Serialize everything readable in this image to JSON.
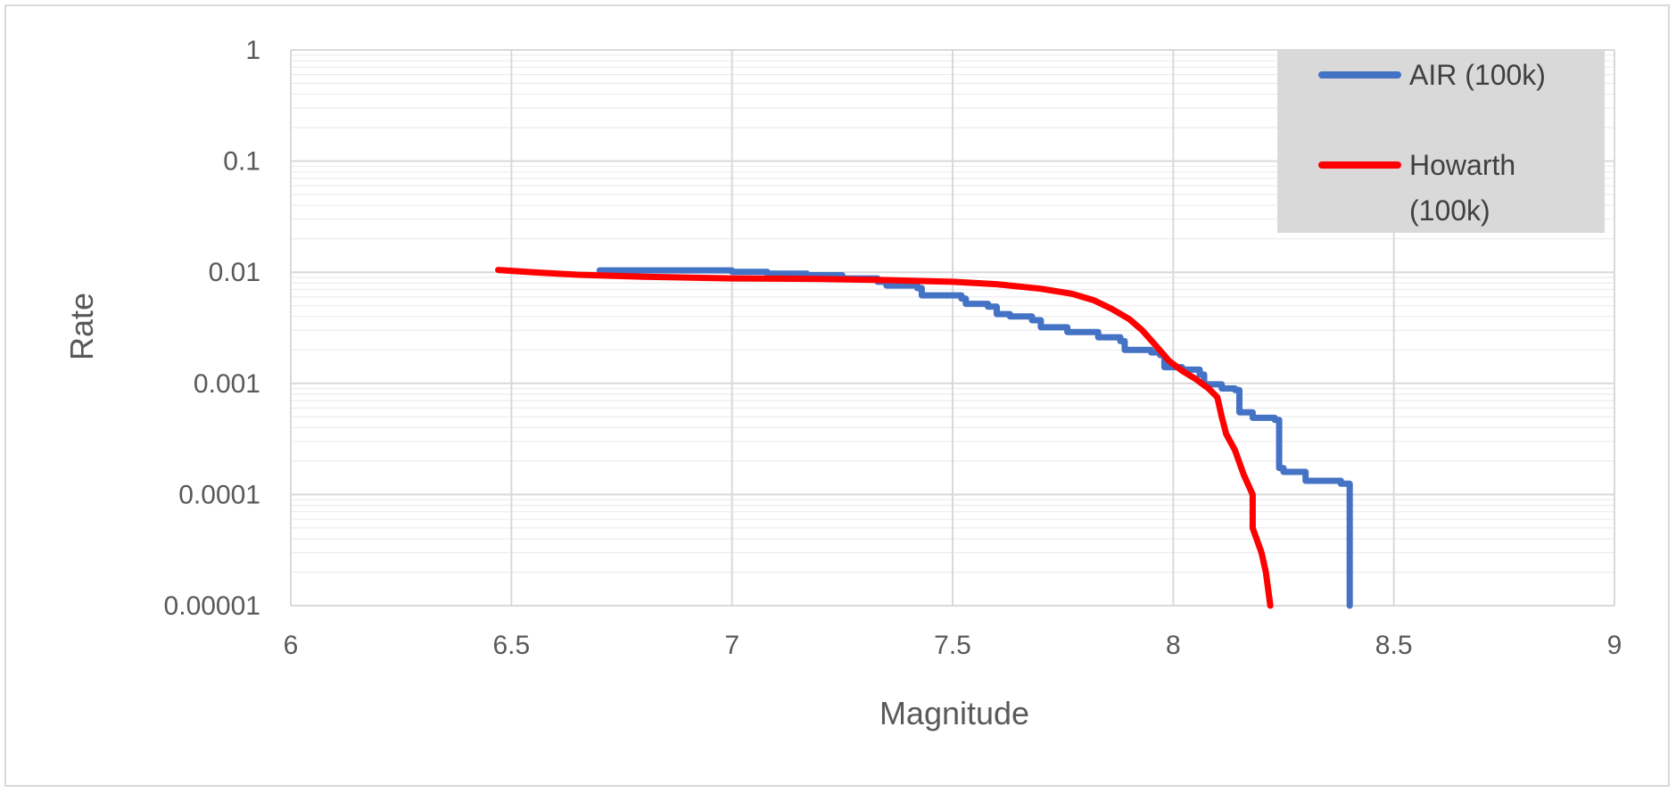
{
  "chart_data": {
    "type": "line",
    "title": "",
    "xlabel": "Magnitude",
    "ylabel": "Rate",
    "xlim": [
      6,
      9
    ],
    "ylim": [
      1e-05,
      1
    ],
    "yscale": "log",
    "x_ticks": [
      "6",
      "6.5",
      "7",
      "7.5",
      "8",
      "8.5",
      "9"
    ],
    "y_ticks": [
      "0.00001",
      "0.0001",
      "0.001",
      "0.01",
      "0.1",
      "1"
    ],
    "grid": true,
    "legend": {
      "placement": "top-right",
      "background": "#d9d9d9",
      "entries": [
        {
          "label_lines": [
            "AIR (100k)"
          ],
          "color": "#4472c4"
        },
        {
          "label_lines": [
            "Howarth",
            "(100k)"
          ],
          "color": "#ff0000"
        }
      ]
    },
    "series": [
      {
        "name": "AIR (100k)",
        "color": "#4472c4",
        "step": true,
        "points": [
          [
            6.7,
            0.0104
          ],
          [
            7.0,
            0.0101
          ],
          [
            7.08,
            0.0097
          ],
          [
            7.17,
            0.0094
          ],
          [
            7.25,
            0.0088
          ],
          [
            7.33,
            0.0082
          ],
          [
            7.35,
            0.0076
          ],
          [
            7.42,
            0.0072
          ],
          [
            7.43,
            0.0062
          ],
          [
            7.52,
            0.0058
          ],
          [
            7.53,
            0.0052
          ],
          [
            7.58,
            0.0049
          ],
          [
            7.6,
            0.0042
          ],
          [
            7.63,
            0.004
          ],
          [
            7.68,
            0.0037
          ],
          [
            7.7,
            0.0032
          ],
          [
            7.76,
            0.0029
          ],
          [
            7.8,
            0.0029
          ],
          [
            7.83,
            0.0026
          ],
          [
            7.88,
            0.0024
          ],
          [
            7.89,
            0.002
          ],
          [
            7.95,
            0.0019
          ],
          [
            7.97,
            0.0018
          ],
          [
            7.98,
            0.0014
          ],
          [
            8.02,
            0.00133
          ],
          [
            8.06,
            0.0012
          ],
          [
            8.07,
            0.00098
          ],
          [
            8.11,
            0.0009
          ],
          [
            8.14,
            0.00087
          ],
          [
            8.15,
            0.00055
          ],
          [
            8.18,
            0.00049
          ],
          [
            8.23,
            0.00047
          ],
          [
            8.24,
            0.000173
          ],
          [
            8.25,
            0.00016
          ],
          [
            8.3,
            0.000133
          ],
          [
            8.38,
            0.000125
          ],
          [
            8.4,
            0.0001
          ],
          [
            8.4,
            1e-05
          ]
        ]
      },
      {
        "name": "Howarth (100k)",
        "color": "#ff0000",
        "step": false,
        "points": [
          [
            6.47,
            0.0105
          ],
          [
            6.55,
            0.01
          ],
          [
            6.65,
            0.0095
          ],
          [
            6.8,
            0.0091
          ],
          [
            7.0,
            0.0088
          ],
          [
            7.2,
            0.0087
          ],
          [
            7.35,
            0.0085
          ],
          [
            7.5,
            0.0082
          ],
          [
            7.6,
            0.0078
          ],
          [
            7.7,
            0.0071
          ],
          [
            7.77,
            0.0064
          ],
          [
            7.82,
            0.0056
          ],
          [
            7.86,
            0.0047
          ],
          [
            7.9,
            0.0038
          ],
          [
            7.93,
            0.003
          ],
          [
            7.96,
            0.0022
          ],
          [
            7.99,
            0.0016
          ],
          [
            8.02,
            0.0013
          ],
          [
            8.05,
            0.0011
          ],
          [
            8.08,
            0.0009
          ],
          [
            8.1,
            0.00075
          ],
          [
            8.11,
            0.0005
          ],
          [
            8.12,
            0.00035
          ],
          [
            8.14,
            0.00025
          ],
          [
            8.16,
            0.00015
          ],
          [
            8.18,
            0.0001
          ],
          [
            8.18,
            5e-05
          ],
          [
            8.2,
            3e-05
          ],
          [
            8.21,
            2e-05
          ],
          [
            8.22,
            1e-05
          ]
        ]
      }
    ]
  }
}
